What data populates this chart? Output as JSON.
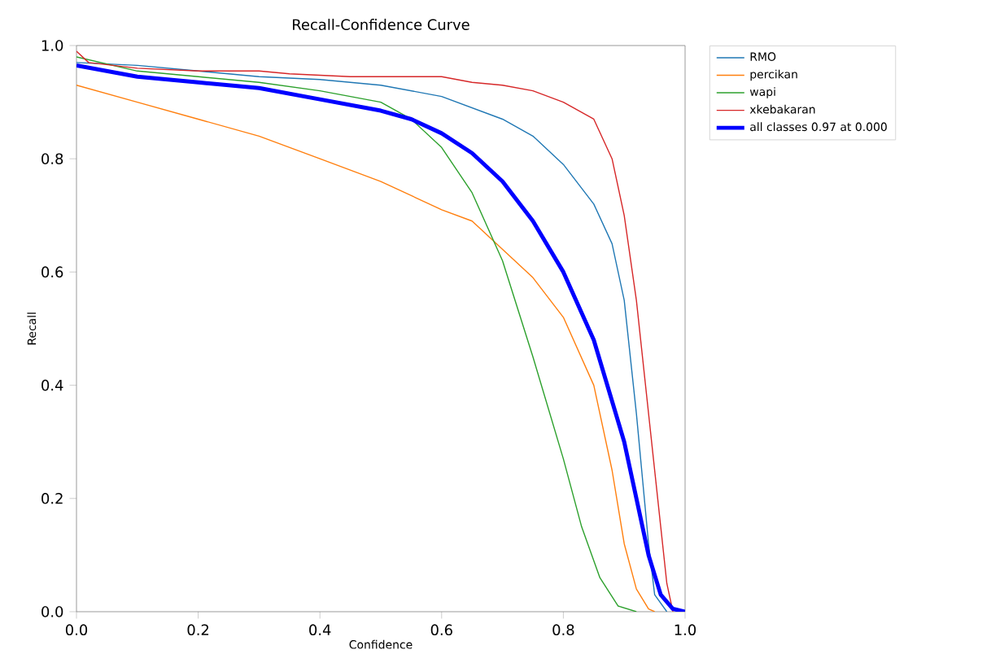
{
  "chart_data": {
    "type": "line",
    "title": "Recall-Confidence Curve",
    "xlabel": "Confidence",
    "ylabel": "Recall",
    "xlim": [
      0,
      1
    ],
    "ylim": [
      0,
      1
    ],
    "xticks": [
      {
        "value": 0,
        "label": "0.0"
      },
      {
        "value": 0.2,
        "label": "0.2"
      },
      {
        "value": 0.4,
        "label": "0.4"
      },
      {
        "value": 0.6,
        "label": "0.6"
      },
      {
        "value": 0.8,
        "label": "0.8"
      },
      {
        "value": 1,
        "label": "1.0"
      }
    ],
    "yticks": [
      {
        "value": 0,
        "label": "0.0"
      },
      {
        "value": 0.2,
        "label": "0.2"
      },
      {
        "value": 0.4,
        "label": "0.4"
      },
      {
        "value": 0.6,
        "label": "0.6"
      },
      {
        "value": 0.8,
        "label": "0.8"
      },
      {
        "value": 1,
        "label": "1.0"
      }
    ],
    "legend": "top right",
    "grid": false,
    "marker": "none",
    "line_style": "solid",
    "series": [
      {
        "name": "RMO",
        "color": "#1f77b4",
        "x": [
          0,
          0.1,
          0.2,
          0.3,
          0.4,
          0.5,
          0.6,
          0.65,
          0.7,
          0.75,
          0.8,
          0.85,
          0.88,
          0.9,
          0.92,
          0.94,
          0.95,
          0.97
        ],
        "values": [
          0.97,
          0.965,
          0.955,
          0.945,
          0.94,
          0.93,
          0.91,
          0.89,
          0.87,
          0.84,
          0.79,
          0.72,
          0.65,
          0.55,
          0.35,
          0.12,
          0.03,
          0
        ]
      },
      {
        "name": "percikan",
        "color": "#ff7f0e",
        "x": [
          0,
          0.1,
          0.2,
          0.3,
          0.4,
          0.5,
          0.6,
          0.65,
          0.7,
          0.75,
          0.8,
          0.85,
          0.88,
          0.9,
          0.92,
          0.94,
          0.95
        ],
        "values": [
          0.93,
          0.9,
          0.87,
          0.84,
          0.8,
          0.76,
          0.71,
          0.69,
          0.64,
          0.59,
          0.52,
          0.4,
          0.25,
          0.12,
          0.04,
          0.005,
          0
        ]
      },
      {
        "name": "wapi",
        "color": "#2ca02c",
        "x": [
          0,
          0.1,
          0.2,
          0.3,
          0.4,
          0.5,
          0.55,
          0.6,
          0.65,
          0.7,
          0.75,
          0.8,
          0.83,
          0.86,
          0.89,
          0.92
        ],
        "values": [
          0.98,
          0.955,
          0.945,
          0.935,
          0.92,
          0.9,
          0.87,
          0.82,
          0.74,
          0.62,
          0.45,
          0.27,
          0.15,
          0.06,
          0.01,
          0
        ]
      },
      {
        "name": "xkebakaran",
        "color": "#d62728",
        "x": [
          0,
          0.02,
          0.1,
          0.2,
          0.3,
          0.35,
          0.45,
          0.6,
          0.65,
          0.7,
          0.75,
          0.8,
          0.85,
          0.88,
          0.9,
          0.92,
          0.94,
          0.96,
          0.97,
          0.98
        ],
        "values": [
          0.99,
          0.97,
          0.96,
          0.955,
          0.955,
          0.95,
          0.945,
          0.945,
          0.935,
          0.93,
          0.92,
          0.9,
          0.87,
          0.8,
          0.7,
          0.55,
          0.35,
          0.15,
          0.05,
          0
        ]
      },
      {
        "name": "all classes 0.97 at 0.000",
        "color": "#0000ff",
        "x": [
          0,
          0.1,
          0.2,
          0.3,
          0.4,
          0.5,
          0.55,
          0.6,
          0.65,
          0.7,
          0.75,
          0.8,
          0.85,
          0.9,
          0.92,
          0.94,
          0.96,
          0.98,
          1
        ],
        "values": [
          0.965,
          0.945,
          0.935,
          0.925,
          0.905,
          0.885,
          0.87,
          0.845,
          0.81,
          0.76,
          0.69,
          0.6,
          0.48,
          0.3,
          0.2,
          0.1,
          0.03,
          0.005,
          0
        ]
      }
    ]
  }
}
